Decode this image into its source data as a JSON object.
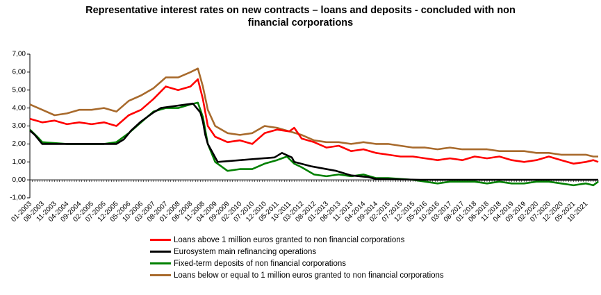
{
  "chart_data": {
    "type": "line",
    "title_lines": [
      "Representative interest rates on new contracts – loans and deposits - concluded with non",
      "financial corporations"
    ],
    "xlabel": "",
    "ylabel": "",
    "ylim": [
      -1,
      7
    ],
    "y_ticks": [
      "-1,00",
      "0,00",
      "1,00",
      "2,00",
      "3,00",
      "4,00",
      "5,00",
      "6,00",
      "7,00"
    ],
    "x_range": [
      "2003-01",
      "2022-03"
    ],
    "x_tick_labels": [
      "01-2003",
      "06-2003",
      "11-2003",
      "04-2004",
      "09-2004",
      "02-2005",
      "07-2005",
      "12-2005",
      "05-2006",
      "10-2006",
      "03-2007",
      "08-2007",
      "01-2008",
      "06-2008",
      "11-2008",
      "04-2009",
      "09-2009",
      "02-2010",
      "07-2010",
      "12-2010",
      "05-2011",
      "10-2011",
      "03-2012",
      "08-2012",
      "01-2013",
      "06-2013",
      "11-2013",
      "04-2014",
      "09-2014",
      "02-2015",
      "07-2015",
      "12-2015",
      "05-2016",
      "10-2016",
      "03-2017",
      "08-2017",
      "01-2018",
      "06-2018",
      "11-2018",
      "04-2019",
      "09-2019",
      "02-2020",
      "07-2020",
      "12-2020",
      "05-2021",
      "10-2021"
    ],
    "grid": false,
    "legend_position": "bottom",
    "series": [
      {
        "name": "Loans above 1 million euros granted to non financial corporations",
        "color": "#ff0000",
        "points": [
          [
            "2003-01",
            3.4
          ],
          [
            "2003-06",
            3.2
          ],
          [
            "2003-11",
            3.3
          ],
          [
            "2004-04",
            3.1
          ],
          [
            "2004-09",
            3.2
          ],
          [
            "2005-02",
            3.1
          ],
          [
            "2005-07",
            3.2
          ],
          [
            "2005-12",
            3.0
          ],
          [
            "2006-05",
            3.6
          ],
          [
            "2006-10",
            3.9
          ],
          [
            "2007-03",
            4.5
          ],
          [
            "2007-08",
            5.2
          ],
          [
            "2008-01",
            5.0
          ],
          [
            "2008-06",
            5.2
          ],
          [
            "2008-09",
            5.6
          ],
          [
            "2008-11",
            4.5
          ],
          [
            "2009-01",
            3.0
          ],
          [
            "2009-04",
            2.4
          ],
          [
            "2009-09",
            2.1
          ],
          [
            "2010-02",
            2.2
          ],
          [
            "2010-07",
            2.0
          ],
          [
            "2010-12",
            2.6
          ],
          [
            "2011-05",
            2.8
          ],
          [
            "2011-10",
            2.7
          ],
          [
            "2011-12",
            2.9
          ],
          [
            "2012-03",
            2.3
          ],
          [
            "2012-08",
            2.1
          ],
          [
            "2013-01",
            1.8
          ],
          [
            "2013-06",
            1.9
          ],
          [
            "2013-11",
            1.6
          ],
          [
            "2014-04",
            1.7
          ],
          [
            "2014-09",
            1.5
          ],
          [
            "2015-02",
            1.4
          ],
          [
            "2015-07",
            1.3
          ],
          [
            "2015-12",
            1.3
          ],
          [
            "2016-05",
            1.2
          ],
          [
            "2016-10",
            1.1
          ],
          [
            "2017-03",
            1.2
          ],
          [
            "2017-08",
            1.1
          ],
          [
            "2018-01",
            1.3
          ],
          [
            "2018-06",
            1.2
          ],
          [
            "2018-11",
            1.3
          ],
          [
            "2019-04",
            1.1
          ],
          [
            "2019-09",
            1.0
          ],
          [
            "2020-02",
            1.1
          ],
          [
            "2020-07",
            1.3
          ],
          [
            "2020-12",
            1.1
          ],
          [
            "2021-05",
            0.9
          ],
          [
            "2021-10",
            1.0
          ],
          [
            "2022-01",
            1.1
          ],
          [
            "2022-03",
            1.0
          ]
        ]
      },
      {
        "name": "Eurosystem main refinancing operations",
        "color": "#000000",
        "points": [
          [
            "2003-01",
            2.75
          ],
          [
            "2003-03",
            2.5
          ],
          [
            "2003-06",
            2.0
          ],
          [
            "2005-12",
            2.0
          ],
          [
            "2006-03",
            2.25
          ],
          [
            "2006-06",
            2.75
          ],
          [
            "2006-10",
            3.25
          ],
          [
            "2007-03",
            3.75
          ],
          [
            "2007-06",
            4.0
          ],
          [
            "2008-07",
            4.25
          ],
          [
            "2008-10",
            3.75
          ],
          [
            "2008-11",
            3.25
          ],
          [
            "2008-12",
            2.5
          ],
          [
            "2009-01",
            2.0
          ],
          [
            "2009-03",
            1.5
          ],
          [
            "2009-04",
            1.25
          ],
          [
            "2009-05",
            1.0
          ],
          [
            "2011-04",
            1.25
          ],
          [
            "2011-07",
            1.5
          ],
          [
            "2011-11",
            1.25
          ],
          [
            "2011-12",
            1.0
          ],
          [
            "2012-07",
            0.75
          ],
          [
            "2013-05",
            0.5
          ],
          [
            "2013-11",
            0.25
          ],
          [
            "2014-06",
            0.15
          ],
          [
            "2014-09",
            0.05
          ],
          [
            "2016-03",
            0.0
          ],
          [
            "2022-03",
            0.0
          ]
        ]
      },
      {
        "name": "Fixed-term deposits of non financial corporations",
        "color": "#008000",
        "points": [
          [
            "2003-01",
            2.8
          ],
          [
            "2003-04",
            2.4
          ],
          [
            "2003-06",
            2.1
          ],
          [
            "2004-04",
            2.0
          ],
          [
            "2005-02",
            2.0
          ],
          [
            "2005-07",
            2.0
          ],
          [
            "2005-12",
            2.1
          ],
          [
            "2006-05",
            2.6
          ],
          [
            "2006-10",
            3.2
          ],
          [
            "2007-03",
            3.8
          ],
          [
            "2007-08",
            4.0
          ],
          [
            "2008-01",
            4.0
          ],
          [
            "2008-06",
            4.2
          ],
          [
            "2008-09",
            4.3
          ],
          [
            "2008-11",
            3.5
          ],
          [
            "2009-01",
            2.0
          ],
          [
            "2009-04",
            1.0
          ],
          [
            "2009-09",
            0.5
          ],
          [
            "2010-02",
            0.6
          ],
          [
            "2010-07",
            0.6
          ],
          [
            "2010-12",
            0.9
          ],
          [
            "2011-05",
            1.1
          ],
          [
            "2011-09",
            1.3
          ],
          [
            "2011-12",
            0.9
          ],
          [
            "2012-03",
            0.7
          ],
          [
            "2012-08",
            0.3
          ],
          [
            "2013-01",
            0.2
          ],
          [
            "2013-06",
            0.3
          ],
          [
            "2013-11",
            0.2
          ],
          [
            "2014-04",
            0.3
          ],
          [
            "2014-09",
            0.1
          ],
          [
            "2015-02",
            0.1
          ],
          [
            "2015-07",
            0.05
          ],
          [
            "2015-12",
            0.0
          ],
          [
            "2016-05",
            -0.1
          ],
          [
            "2016-10",
            -0.2
          ],
          [
            "2017-03",
            -0.1
          ],
          [
            "2017-08",
            -0.1
          ],
          [
            "2018-01",
            -0.1
          ],
          [
            "2018-06",
            -0.2
          ],
          [
            "2018-11",
            -0.1
          ],
          [
            "2019-04",
            -0.2
          ],
          [
            "2019-09",
            -0.2
          ],
          [
            "2020-02",
            -0.1
          ],
          [
            "2020-07",
            -0.1
          ],
          [
            "2020-12",
            -0.2
          ],
          [
            "2021-05",
            -0.3
          ],
          [
            "2021-10",
            -0.2
          ],
          [
            "2022-01",
            -0.3
          ],
          [
            "2022-03",
            -0.1
          ]
        ]
      },
      {
        "name": "Loans below or equal to 1 million euros granted to non financial corporations",
        "color": "#a86a2c",
        "points": [
          [
            "2003-01",
            4.2
          ],
          [
            "2003-06",
            3.9
          ],
          [
            "2003-11",
            3.6
          ],
          [
            "2004-04",
            3.7
          ],
          [
            "2004-09",
            3.9
          ],
          [
            "2005-02",
            3.9
          ],
          [
            "2005-07",
            4.0
          ],
          [
            "2005-12",
            3.8
          ],
          [
            "2006-05",
            4.4
          ],
          [
            "2006-10",
            4.7
          ],
          [
            "2007-03",
            5.1
          ],
          [
            "2007-08",
            5.7
          ],
          [
            "2008-01",
            5.7
          ],
          [
            "2008-06",
            6.0
          ],
          [
            "2008-09",
            6.2
          ],
          [
            "2008-11",
            5.2
          ],
          [
            "2009-01",
            3.9
          ],
          [
            "2009-04",
            3.0
          ],
          [
            "2009-09",
            2.6
          ],
          [
            "2010-02",
            2.5
          ],
          [
            "2010-07",
            2.6
          ],
          [
            "2010-12",
            3.0
          ],
          [
            "2011-05",
            2.9
          ],
          [
            "2011-10",
            2.7
          ],
          [
            "2012-03",
            2.5
          ],
          [
            "2012-08",
            2.2
          ],
          [
            "2013-01",
            2.1
          ],
          [
            "2013-06",
            2.1
          ],
          [
            "2013-11",
            2.0
          ],
          [
            "2014-04",
            2.1
          ],
          [
            "2014-09",
            2.0
          ],
          [
            "2015-02",
            2.0
          ],
          [
            "2015-07",
            1.9
          ],
          [
            "2015-12",
            1.8
          ],
          [
            "2016-05",
            1.8
          ],
          [
            "2016-10",
            1.7
          ],
          [
            "2017-03",
            1.8
          ],
          [
            "2017-08",
            1.7
          ],
          [
            "2018-01",
            1.7
          ],
          [
            "2018-06",
            1.7
          ],
          [
            "2018-11",
            1.6
          ],
          [
            "2019-04",
            1.6
          ],
          [
            "2019-09",
            1.6
          ],
          [
            "2020-02",
            1.5
          ],
          [
            "2020-07",
            1.5
          ],
          [
            "2020-12",
            1.4
          ],
          [
            "2021-05",
            1.4
          ],
          [
            "2021-10",
            1.4
          ],
          [
            "2022-01",
            1.3
          ],
          [
            "2022-03",
            1.3
          ]
        ]
      }
    ]
  }
}
